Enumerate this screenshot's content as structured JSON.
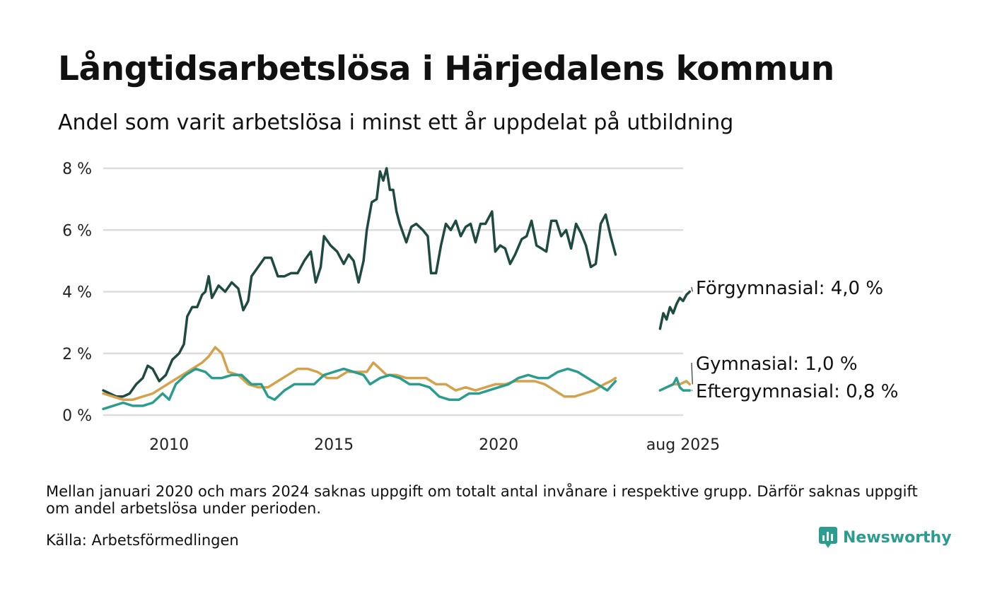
{
  "title": "Långtidsarbetslösa i Härjedalens kommun",
  "subtitle": "Andel som varit arbetslösa i minst ett år uppdelat på utbildning",
  "note": "Mellan januari 2020 och mars 2024 saknas uppgift om totalt antal invånare i respektive grupp. Därför saknas uppgift om andel arbetslösa under perioden.",
  "source": "Källa: Arbetsförmedlingen",
  "brand": {
    "name": "Newsworthy",
    "icon": "newsworthy-logo-icon",
    "color": "#2a9d8f"
  },
  "chart_data": {
    "type": "line",
    "grid": true,
    "legend": "end-labels",
    "ylim": [
      0,
      8
    ],
    "yticks": [
      0,
      2,
      4,
      6,
      8
    ],
    "ytick_labels": [
      "0 %",
      "2 %",
      "4 %",
      "6 %",
      "8 %"
    ],
    "xlim": [
      2008.0,
      2025.6
    ],
    "xticks": [
      2010,
      2015,
      2020,
      2025.6
    ],
    "xtick_labels": [
      "2010",
      "2015",
      "2020",
      "aug 2025"
    ],
    "series": [
      {
        "name": "Förgymnasial",
        "end_label": "Förgymnasial: 4,0 %",
        "color": "#1f4a42",
        "segments": [
          [
            [
              2008.0,
              0.8
            ],
            [
              2008.2,
              0.7
            ],
            [
              2008.4,
              0.6
            ],
            [
              2008.6,
              0.6
            ],
            [
              2008.8,
              0.7
            ],
            [
              2009.0,
              1.0
            ],
            [
              2009.2,
              1.2
            ],
            [
              2009.35,
              1.6
            ],
            [
              2009.5,
              1.5
            ],
            [
              2009.7,
              1.1
            ],
            [
              2009.9,
              1.3
            ],
            [
              2010.1,
              1.8
            ],
            [
              2010.3,
              2.0
            ],
            [
              2010.45,
              2.3
            ],
            [
              2010.55,
              3.2
            ],
            [
              2010.7,
              3.5
            ],
            [
              2010.85,
              3.5
            ],
            [
              2011.0,
              3.9
            ],
            [
              2011.1,
              4.0
            ],
            [
              2011.2,
              4.5
            ],
            [
              2011.3,
              3.8
            ],
            [
              2011.5,
              4.2
            ],
            [
              2011.7,
              4.0
            ],
            [
              2011.9,
              4.3
            ],
            [
              2012.1,
              4.1
            ],
            [
              2012.25,
              3.4
            ],
            [
              2012.4,
              3.7
            ],
            [
              2012.5,
              4.5
            ],
            [
              2012.7,
              4.8
            ],
            [
              2012.9,
              5.1
            ],
            [
              2013.1,
              5.1
            ],
            [
              2013.3,
              4.5
            ],
            [
              2013.5,
              4.5
            ],
            [
              2013.7,
              4.6
            ],
            [
              2013.9,
              4.6
            ],
            [
              2014.1,
              5.0
            ],
            [
              2014.3,
              5.3
            ],
            [
              2014.45,
              4.3
            ],
            [
              2014.6,
              4.8
            ],
            [
              2014.7,
              5.8
            ],
            [
              2014.9,
              5.5
            ],
            [
              2015.1,
              5.3
            ],
            [
              2015.3,
              4.9
            ],
            [
              2015.45,
              5.2
            ],
            [
              2015.6,
              5.0
            ],
            [
              2015.75,
              4.3
            ],
            [
              2015.9,
              5.0
            ],
            [
              2016.0,
              6.0
            ],
            [
              2016.15,
              6.9
            ],
            [
              2016.3,
              7.0
            ],
            [
              2016.4,
              7.9
            ],
            [
              2016.5,
              7.6
            ],
            [
              2016.6,
              8.0
            ],
            [
              2016.7,
              7.3
            ],
            [
              2016.8,
              7.3
            ],
            [
              2016.9,
              6.6
            ],
            [
              2017.0,
              6.2
            ],
            [
              2017.2,
              5.6
            ],
            [
              2017.35,
              6.1
            ],
            [
              2017.5,
              6.2
            ],
            [
              2017.7,
              6.0
            ],
            [
              2017.85,
              5.8
            ],
            [
              2017.95,
              4.6
            ],
            [
              2018.1,
              4.6
            ],
            [
              2018.25,
              5.5
            ],
            [
              2018.4,
              6.2
            ],
            [
              2018.55,
              6.0
            ],
            [
              2018.7,
              6.3
            ],
            [
              2018.85,
              5.8
            ],
            [
              2019.0,
              6.1
            ],
            [
              2019.15,
              6.2
            ],
            [
              2019.3,
              5.6
            ],
            [
              2019.45,
              6.2
            ],
            [
              2019.6,
              6.2
            ],
            [
              2019.8,
              6.6
            ],
            [
              2019.9,
              5.3
            ],
            [
              2020.05,
              5.5
            ],
            [
              2020.2,
              5.4
            ],
            [
              2020.35,
              4.9
            ],
            [
              2020.5,
              5.2
            ],
            [
              2020.7,
              5.7
            ],
            [
              2020.85,
              5.8
            ],
            [
              2021.0,
              6.3
            ],
            [
              2021.15,
              5.5
            ],
            [
              2021.3,
              5.4
            ],
            [
              2021.45,
              5.3
            ],
            [
              2021.6,
              6.3
            ],
            [
              2021.75,
              6.3
            ],
            [
              2021.9,
              5.8
            ],
            [
              2022.05,
              6.0
            ],
            [
              2022.2,
              5.4
            ],
            [
              2022.35,
              6.2
            ],
            [
              2022.5,
              5.9
            ],
            [
              2022.65,
              5.5
            ],
            [
              2022.8,
              4.8
            ],
            [
              2022.95,
              4.9
            ],
            [
              2023.1,
              6.2
            ],
            [
              2023.25,
              6.5
            ],
            [
              2023.4,
              5.8
            ],
            [
              2023.55,
              5.2
            ]
          ],
          [
            [
              2024.9,
              2.8
            ],
            [
              2025.0,
              3.3
            ],
            [
              2025.1,
              3.1
            ],
            [
              2025.2,
              3.5
            ],
            [
              2025.3,
              3.3
            ],
            [
              2025.4,
              3.6
            ],
            [
              2025.5,
              3.8
            ],
            [
              2025.6,
              3.7
            ],
            [
              2025.7,
              3.9
            ],
            [
              2025.8,
              4.0
            ]
          ]
        ]
      },
      {
        "name": "Gymnasial",
        "end_label": "Gymnasial: 1,0 %",
        "color": "#d4a24c",
        "segments": [
          [
            [
              2008.0,
              0.7
            ],
            [
              2008.3,
              0.6
            ],
            [
              2008.6,
              0.5
            ],
            [
              2008.9,
              0.5
            ],
            [
              2009.2,
              0.6
            ],
            [
              2009.5,
              0.7
            ],
            [
              2009.8,
              0.9
            ],
            [
              2010.1,
              1.1
            ],
            [
              2010.4,
              1.3
            ],
            [
              2010.7,
              1.5
            ],
            [
              2011.0,
              1.7
            ],
            [
              2011.2,
              1.9
            ],
            [
              2011.4,
              2.2
            ],
            [
              2011.6,
              2.0
            ],
            [
              2011.8,
              1.4
            ],
            [
              2012.1,
              1.3
            ],
            [
              2012.4,
              1.0
            ],
            [
              2012.7,
              0.9
            ],
            [
              2013.0,
              0.9
            ],
            [
              2013.3,
              1.1
            ],
            [
              2013.6,
              1.3
            ],
            [
              2013.9,
              1.5
            ],
            [
              2014.2,
              1.5
            ],
            [
              2014.5,
              1.4
            ],
            [
              2014.8,
              1.2
            ],
            [
              2015.1,
              1.2
            ],
            [
              2015.4,
              1.4
            ],
            [
              2015.7,
              1.4
            ],
            [
              2016.0,
              1.4
            ],
            [
              2016.2,
              1.7
            ],
            [
              2016.4,
              1.5
            ],
            [
              2016.6,
              1.3
            ],
            [
              2016.9,
              1.3
            ],
            [
              2017.2,
              1.2
            ],
            [
              2017.5,
              1.2
            ],
            [
              2017.8,
              1.2
            ],
            [
              2018.1,
              1.0
            ],
            [
              2018.4,
              1.0
            ],
            [
              2018.7,
              0.8
            ],
            [
              2019.0,
              0.9
            ],
            [
              2019.3,
              0.8
            ],
            [
              2019.6,
              0.9
            ],
            [
              2019.9,
              1.0
            ],
            [
              2020.2,
              1.0
            ],
            [
              2020.5,
              1.1
            ],
            [
              2020.8,
              1.1
            ],
            [
              2021.1,
              1.1
            ],
            [
              2021.4,
              1.0
            ],
            [
              2021.7,
              0.8
            ],
            [
              2022.0,
              0.6
            ],
            [
              2022.3,
              0.6
            ],
            [
              2022.6,
              0.7
            ],
            [
              2022.9,
              0.8
            ],
            [
              2023.2,
              1.0
            ],
            [
              2023.4,
              1.1
            ],
            [
              2023.55,
              1.2
            ]
          ],
          [
            [
              2024.9,
              0.8
            ],
            [
              2025.1,
              0.9
            ],
            [
              2025.3,
              1.0
            ],
            [
              2025.5,
              1.0
            ],
            [
              2025.7,
              1.1
            ],
            [
              2025.8,
              1.0
            ]
          ]
        ]
      },
      {
        "name": "Eftergymnasial",
        "end_label": "Eftergymnasial: 0,8 %",
        "color": "#2a9d8f",
        "segments": [
          [
            [
              2008.0,
              0.2
            ],
            [
              2008.3,
              0.3
            ],
            [
              2008.6,
              0.4
            ],
            [
              2008.9,
              0.3
            ],
            [
              2009.2,
              0.3
            ],
            [
              2009.5,
              0.4
            ],
            [
              2009.8,
              0.7
            ],
            [
              2010.0,
              0.5
            ],
            [
              2010.2,
              1.0
            ],
            [
              2010.5,
              1.3
            ],
            [
              2010.8,
              1.5
            ],
            [
              2011.1,
              1.4
            ],
            [
              2011.3,
              1.2
            ],
            [
              2011.6,
              1.2
            ],
            [
              2011.9,
              1.3
            ],
            [
              2012.2,
              1.3
            ],
            [
              2012.5,
              1.0
            ],
            [
              2012.8,
              1.0
            ],
            [
              2013.0,
              0.6
            ],
            [
              2013.2,
              0.5
            ],
            [
              2013.5,
              0.8
            ],
            [
              2013.8,
              1.0
            ],
            [
              2014.1,
              1.0
            ],
            [
              2014.4,
              1.0
            ],
            [
              2014.7,
              1.3
            ],
            [
              2015.0,
              1.4
            ],
            [
              2015.3,
              1.5
            ],
            [
              2015.6,
              1.4
            ],
            [
              2015.9,
              1.3
            ],
            [
              2016.1,
              1.0
            ],
            [
              2016.4,
              1.2
            ],
            [
              2016.7,
              1.3
            ],
            [
              2017.0,
              1.2
            ],
            [
              2017.3,
              1.0
            ],
            [
              2017.6,
              1.0
            ],
            [
              2017.9,
              0.9
            ],
            [
              2018.2,
              0.6
            ],
            [
              2018.5,
              0.5
            ],
            [
              2018.8,
              0.5
            ],
            [
              2019.1,
              0.7
            ],
            [
              2019.4,
              0.7
            ],
            [
              2019.7,
              0.8
            ],
            [
              2020.0,
              0.9
            ],
            [
              2020.3,
              1.0
            ],
            [
              2020.6,
              1.2
            ],
            [
              2020.9,
              1.3
            ],
            [
              2021.2,
              1.2
            ],
            [
              2021.5,
              1.2
            ],
            [
              2021.8,
              1.4
            ],
            [
              2022.1,
              1.5
            ],
            [
              2022.4,
              1.4
            ],
            [
              2022.7,
              1.2
            ],
            [
              2023.0,
              1.0
            ],
            [
              2023.3,
              0.8
            ],
            [
              2023.55,
              1.1
            ]
          ],
          [
            [
              2024.9,
              0.8
            ],
            [
              2025.1,
              0.9
            ],
            [
              2025.3,
              1.0
            ],
            [
              2025.4,
              1.2
            ],
            [
              2025.5,
              0.9
            ],
            [
              2025.6,
              0.8
            ],
            [
              2025.7,
              0.8
            ],
            [
              2025.8,
              0.8
            ]
          ]
        ]
      }
    ]
  }
}
